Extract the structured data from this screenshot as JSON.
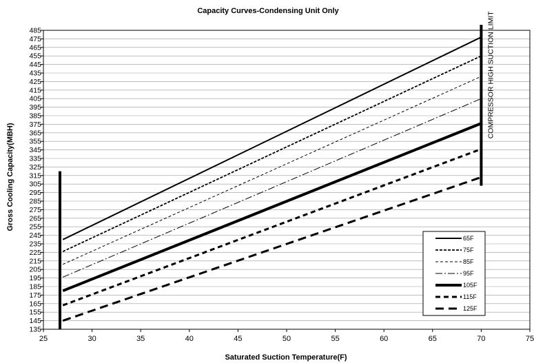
{
  "chart_data": {
    "type": "line",
    "title": "Capacity Curves-Condensing Unit Only",
    "xlabel": "Saturated Suction Temperature(F)",
    "ylabel": "Gross Cooling Capacity(MBH)",
    "xlim": [
      25,
      75
    ],
    "ylim": [
      135,
      485
    ],
    "xticks": [
      25,
      30,
      35,
      40,
      45,
      50,
      55,
      60,
      65,
      70,
      75
    ],
    "yticks": [
      135,
      145,
      155,
      165,
      175,
      185,
      195,
      205,
      215,
      225,
      235,
      245,
      255,
      265,
      275,
      285,
      295,
      305,
      315,
      325,
      335,
      345,
      355,
      365,
      375,
      385,
      395,
      405,
      415,
      425,
      435,
      445,
      455,
      465,
      475,
      485
    ],
    "grid": "horizontal",
    "legend_position": "lower-right",
    "series": [
      {
        "name": "65F",
        "x": [
          27,
          70
        ],
        "y": [
          240,
          477
        ]
      },
      {
        "name": "75F",
        "x": [
          27,
          70
        ],
        "y": [
          226,
          455
        ]
      },
      {
        "name": "85F",
        "x": [
          27,
          70
        ],
        "y": [
          211,
          431
        ]
      },
      {
        "name": "95F",
        "x": [
          27,
          70
        ],
        "y": [
          196,
          405
        ]
      },
      {
        "name": "105F",
        "x": [
          27,
          70
        ],
        "y": [
          180,
          376
        ]
      },
      {
        "name": "115F",
        "x": [
          27,
          70
        ],
        "y": [
          163,
          346
        ]
      },
      {
        "name": "125F",
        "x": [
          27,
          70
        ],
        "y": [
          145,
          313
        ]
      }
    ],
    "limit_lines": [
      {
        "x": 26.7,
        "y": [
          135,
          320
        ]
      },
      {
        "x": 70,
        "y": [
          303,
          485
        ],
        "label": "COMPRESSOR HIGH SUCTION LIMIT"
      }
    ]
  },
  "styles": {
    "line_color": "#000000",
    "grid_color": "#999999"
  }
}
